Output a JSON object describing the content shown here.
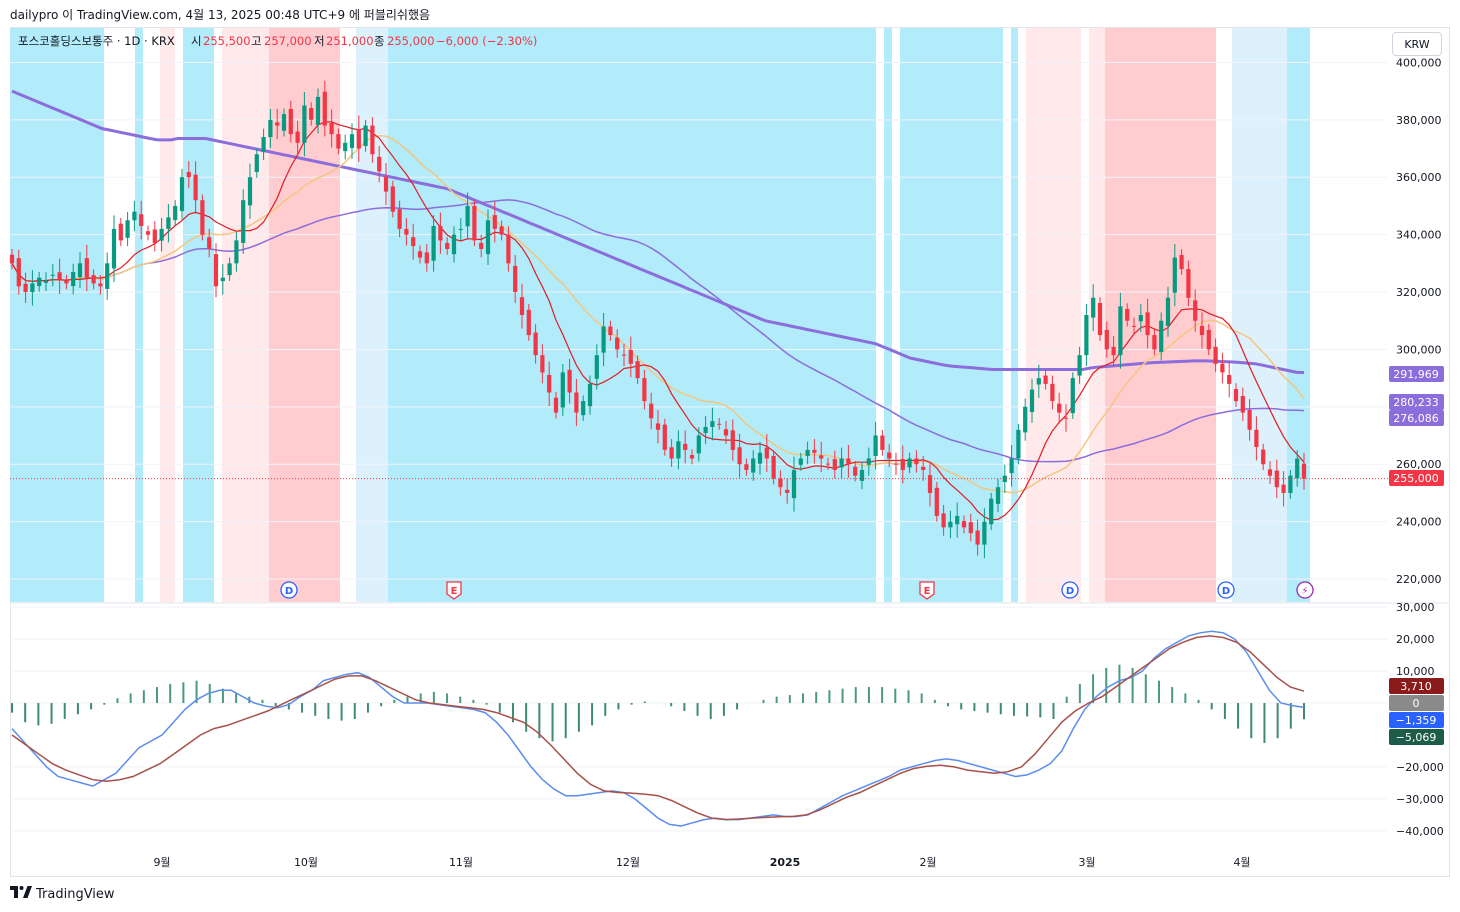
{
  "header": {
    "attribution": "dailypro 이 TradingView.com, 4월 13, 2025 00:48 UTC+9 에 퍼블리쉬했음",
    "symbol": "포스코홀딩스보통주 · 1D · KRX",
    "open_label": "시",
    "open_value": "255,500",
    "high_label": "고",
    "high_value": "257,000",
    "low_label": "저",
    "low_value": "251,000",
    "close_label": "종",
    "close_value": "255,000",
    "change": "−6,000 (−2.30%)"
  },
  "currency_button": "KRW",
  "footer": {
    "brand": "TradingView",
    "logo_icon": "tradingview-logo-icon"
  },
  "colors": {
    "up": "#26a69a",
    "down": "#f23645",
    "up_dark": "#089981",
    "bg_blue": "#b2ebf9",
    "bg_lightblue": "#dcf1fb",
    "bg_red": "#ffcccf",
    "bg_pink": "#ffe9ea",
    "ma_purple": "#8b6ddc",
    "ma_orange": "#f5c680",
    "ma_red": "#e31b23",
    "macd_blue": "#5b8def",
    "signal_brown": "#a7504a"
  },
  "chart_data": [
    {
      "type": "candlestick",
      "ylim": [
        212000,
        412000
      ],
      "y_ticks": [
        "400,000",
        "380,000",
        "360,000",
        "340,000",
        "320,000",
        "300,000",
        "280,000",
        "260,000",
        "240,000",
        "220,000"
      ],
      "x_ticks": [
        "9월",
        "10월",
        "11월",
        "12월",
        "2025",
        "2월",
        "3월",
        "4월"
      ],
      "price_labels": {
        "ma_long": "291,969",
        "ma_mid": "280,233",
        "ma_short": "276,086",
        "last": "255,000"
      },
      "events": [
        {
          "label": "D",
          "kind": "dividend"
        },
        {
          "label": "E",
          "kind": "earnings"
        },
        {
          "label": "E",
          "kind": "earnings"
        },
        {
          "label": "D",
          "kind": "dividend"
        },
        {
          "label": "D",
          "kind": "dividend"
        },
        {
          "label": "⚡",
          "kind": "split"
        }
      ],
      "closes": [
        330000,
        322000,
        320000,
        323000,
        325000,
        324000,
        326000,
        324000,
        323000,
        327000,
        330000,
        325000,
        323000,
        322000,
        330000,
        342000,
        338000,
        345000,
        348000,
        343000,
        340000,
        337000,
        342000,
        346000,
        350000,
        360000,
        360000,
        352000,
        340000,
        335000,
        322000,
        325000,
        330000,
        338000,
        352000,
        360000,
        368000,
        374000,
        380000,
        378000,
        382000,
        375000,
        372000,
        385000,
        380000,
        388000,
        378000,
        375000,
        370000,
        372000,
        375000,
        370000,
        378000,
        368000,
        362000,
        355000,
        348000,
        342000,
        340000,
        336000,
        332000,
        330000,
        343000,
        338000,
        335000,
        340000,
        342000,
        350000,
        338000,
        335000,
        345000,
        342000,
        340000,
        330000,
        320000,
        312000,
        305000,
        298000,
        292000,
        285000,
        278000,
        292000,
        285000,
        278000,
        282000,
        288000,
        298000,
        308000,
        305000,
        300000,
        298000,
        295000,
        290000,
        282000,
        276000,
        272000,
        265000,
        262000,
        268000,
        265000,
        262000,
        270000,
        273000,
        275000,
        274000,
        270000,
        265000,
        260000,
        258000,
        262000,
        264000,
        262000,
        255000,
        252000,
        250000,
        258000,
        262000,
        265000,
        264000,
        262000,
        260000,
        258000,
        262000,
        260000,
        256000,
        258000,
        262000,
        270000,
        265000,
        262000,
        260000,
        258000,
        262000,
        260000,
        258000,
        250000,
        242000,
        238000,
        240000,
        242000,
        238000,
        236000,
        232000,
        240000,
        248000,
        252000,
        256000,
        262000,
        272000,
        280000,
        286000,
        290000,
        288000,
        282000,
        278000,
        276000,
        290000,
        298000,
        312000,
        318000,
        305000,
        300000,
        298000,
        315000,
        310000,
        308000,
        312000,
        305000,
        300000,
        310000,
        318000,
        332000,
        328000,
        318000,
        310000,
        305000,
        300000,
        295000,
        292000,
        288000,
        282000,
        278000,
        272000,
        266000,
        260000,
        256000,
        252000,
        250000,
        256000,
        262000,
        255000
      ],
      "ma_long": [
        390000,
        389000,
        388000,
        387000,
        386000,
        385000,
        384000,
        383000,
        382000,
        381000,
        380000,
        379000,
        378000,
        377000,
        376500,
        376000,
        375500,
        375000,
        374500,
        374000,
        373500,
        373000,
        373000,
        373000,
        373500,
        373500,
        373500,
        373500,
        373500,
        373000,
        372500,
        372000,
        371500,
        371000,
        370500,
        370000,
        369500,
        369000,
        368500,
        368000,
        367500,
        367000,
        366500,
        366000,
        365500,
        365000,
        364500,
        364000,
        363500,
        363000,
        362500,
        362000,
        361500,
        361000,
        360500,
        360000,
        359500,
        359000,
        358500,
        358000,
        357500,
        357000,
        356500,
        356000,
        355000,
        354000,
        353000,
        352000,
        351000,
        350000,
        349000,
        348000,
        347000,
        346000,
        345000,
        344000,
        343000,
        342000,
        341000,
        340000,
        339000,
        338000,
        337000,
        336000,
        335000,
        334000,
        333000,
        332000,
        331000,
        330000,
        329000,
        328000,
        327000,
        326000,
        325000,
        324000,
        323000,
        322000,
        321000,
        320000,
        319000,
        318000,
        317000,
        316000,
        315000,
        314000,
        313000,
        312000,
        311000,
        310000,
        309500,
        309000,
        308500,
        308000,
        307500,
        307000,
        306500,
        306000,
        305500,
        305000,
        304500,
        304000,
        303500,
        303000,
        302500,
        302000,
        301000,
        300000,
        299000,
        298000,
        297000,
        296500,
        296000,
        295500,
        295000,
        294500,
        294200,
        294000,
        293800,
        293600,
        293400,
        293200,
        293000,
        293000,
        293000,
        293000,
        293000,
        293000,
        293000,
        293000,
        293000,
        293000,
        293000,
        293000,
        293000,
        293000,
        293500,
        293800,
        294000,
        294200,
        294400,
        294600,
        294800,
        295000,
        295200,
        295400,
        295500,
        295600,
        295700,
        295800,
        295900,
        296000,
        296000,
        296000,
        295900,
        295800,
        295700,
        295600,
        295400,
        295200,
        295000,
        294500,
        294000,
        293500,
        293000,
        292500,
        292000,
        291969
      ],
      "macd": [
        -8000,
        -12000,
        -16000,
        -20000,
        -23000,
        -24000,
        -25000,
        -26000,
        -24000,
        -22000,
        -18000,
        -14000,
        -12000,
        -10000,
        -6000,
        -2000,
        1000,
        3000,
        4000,
        4000,
        2000,
        0,
        -1000,
        -1500,
        -500,
        2000,
        4000,
        7000,
        8000,
        9000,
        9500,
        8000,
        5000,
        2000,
        0,
        0,
        0,
        -500,
        -1000,
        -1500,
        -2000,
        -3000,
        -6000,
        -10000,
        -15000,
        -20000,
        -24000,
        -27000,
        -29000,
        -29000,
        -28500,
        -28000,
        -27500,
        -28000,
        -30000,
        -33000,
        -36000,
        -38000,
        -38500,
        -37500,
        -36500,
        -36000,
        -36500,
        -36500,
        -36000,
        -35500,
        -35000,
        -35500,
        -35500,
        -35000,
        -33000,
        -31000,
        -29000,
        -27500,
        -26000,
        -24500,
        -23000,
        -21000,
        -20000,
        -19000,
        -18000,
        -17500,
        -18000,
        -19000,
        -20000,
        -21000,
        -22000,
        -23000,
        -22500,
        -21000,
        -19000,
        -15000,
        -8000,
        -2000,
        2000,
        5000,
        7000,
        8000,
        10000,
        14000,
        17000,
        19000,
        21000,
        22000,
        22500,
        22000,
        20000,
        16000,
        10000,
        4000,
        0,
        -800,
        -1359
      ],
      "signal": [
        -10000,
        -13000,
        -16000,
        -19000,
        -21000,
        -22500,
        -24000,
        -24500,
        -24000,
        -23000,
        -21000,
        -19000,
        -16000,
        -13000,
        -10000,
        -8000,
        -7000,
        -5500,
        -4000,
        -2500,
        -500,
        1500,
        3500,
        5500,
        7500,
        8500,
        8500,
        7000,
        5000,
        3000,
        1000,
        0,
        -500,
        -1000,
        -1500,
        -2000,
        -3000,
        -4500,
        -6000,
        -9000,
        -13000,
        -17500,
        -22000,
        -25500,
        -27500,
        -28000,
        -28200,
        -28500,
        -29000,
        -30500,
        -32500,
        -34500,
        -36000,
        -36500,
        -36300,
        -36000,
        -35800,
        -35600,
        -35500,
        -35000,
        -33500,
        -31500,
        -29500,
        -28000,
        -26000,
        -24000,
        -22000,
        -20500,
        -19800,
        -19500,
        -20000,
        -21000,
        -21500,
        -22000,
        -21500,
        -20000,
        -16000,
        -11000,
        -6000,
        -2500,
        0,
        2000,
        5000,
        8000,
        11000,
        14000,
        17000,
        19000,
        20500,
        21000,
        20500,
        19000,
        16000,
        12000,
        8000,
        5000,
        3710
      ],
      "histogram": [
        -3000,
        -6000,
        -7000,
        -6500,
        -5000,
        -3500,
        -2000,
        -500,
        1500,
        3000,
        4000,
        5000,
        6000,
        6500,
        7000,
        6000,
        4500,
        3000,
        2000,
        1000,
        -1000,
        -2000,
        -3000,
        -4000,
        -5000,
        -5500,
        -5000,
        -3000,
        -1000,
        1000,
        2000,
        3000,
        3500,
        3000,
        2000,
        1000,
        -500,
        -3000,
        -6000,
        -9000,
        -11000,
        -12000,
        -11000,
        -9000,
        -7000,
        -4000,
        -2000,
        -500,
        500,
        0,
        -1000,
        -2500,
        -4000,
        -5000,
        -4000,
        -2000,
        0,
        1000,
        2000,
        2500,
        3000,
        3500,
        4000,
        4500,
        5000,
        5000,
        5000,
        4500,
        4000,
        3000,
        1000,
        -1000,
        -2000,
        -2500,
        -3000,
        -3500,
        -4000,
        -4200,
        -4500,
        -5000,
        2000,
        6000,
        9000,
        11000,
        12000,
        11000,
        9000,
        7000,
        5000,
        3000,
        1000,
        -2000,
        -5000,
        -8000,
        -11000,
        -12500,
        -11000,
        -8000,
        -5069
      ]
    }
  ]
}
